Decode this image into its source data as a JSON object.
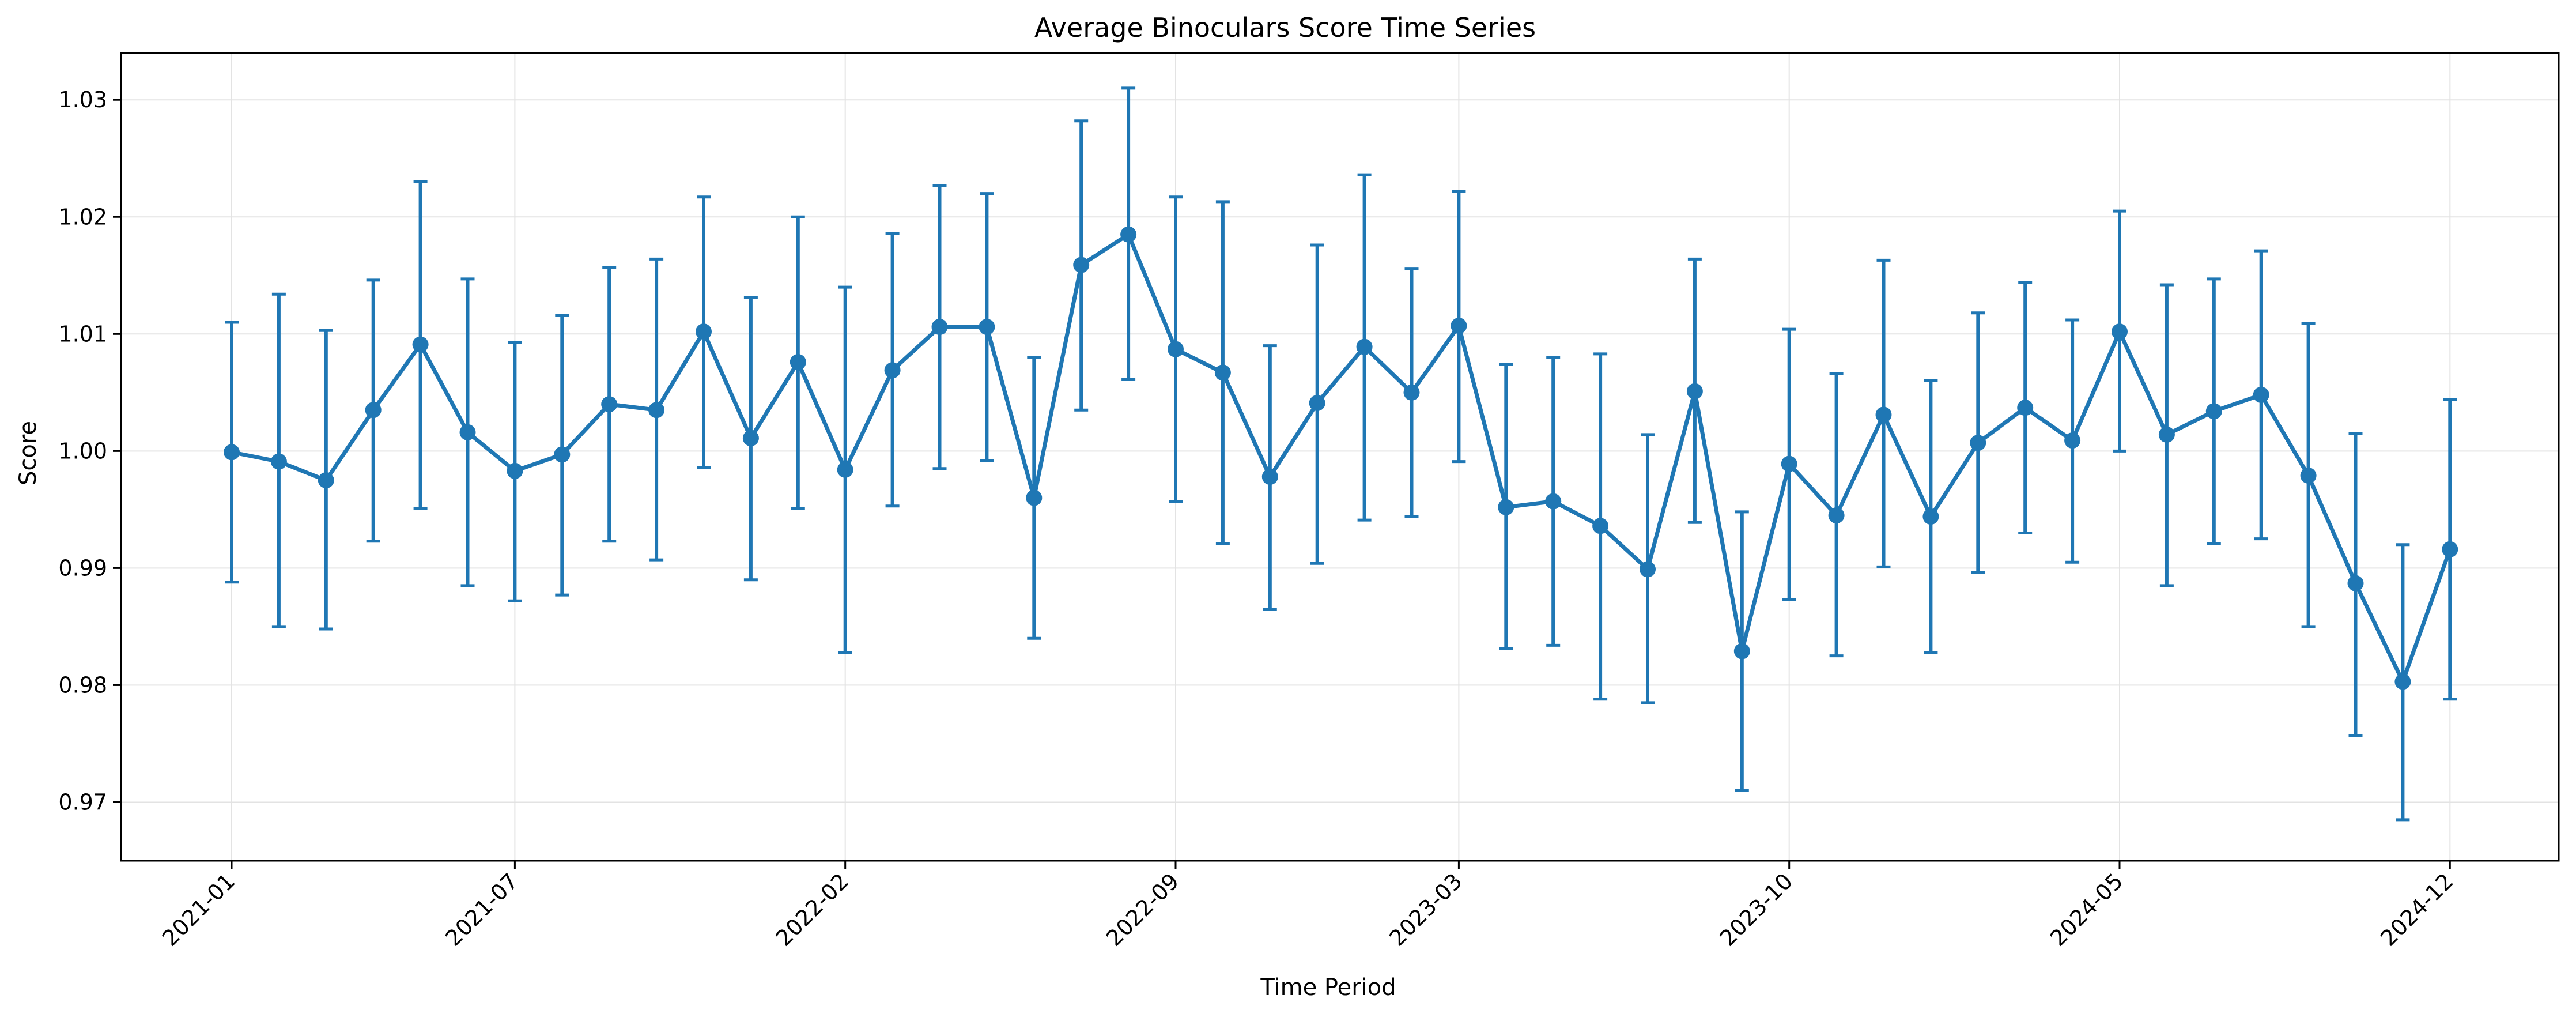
{
  "chart_data": {
    "type": "line",
    "title": "Average Binoculars Score Time Series",
    "xlabel": "Time Period",
    "ylabel": "Score",
    "ylim": [
      0.965,
      1.034
    ],
    "yticks": [
      0.97,
      0.98,
      0.99,
      1.0,
      1.01,
      1.02,
      1.03
    ],
    "ytick_labels": [
      "0.97",
      "0.98",
      "0.99",
      "1.00",
      "1.01",
      "1.02",
      "1.03"
    ],
    "x_tick_labels": [
      "2021-01",
      "2021-07",
      "2022-02",
      "2022-09",
      "2023-03",
      "2023-10",
      "2024-05",
      "2024-12"
    ],
    "grid": true,
    "color": "#1f77b4",
    "series": [
      {
        "x": [
          "2021-01",
          "2021-02",
          "2021-03",
          "2021-04",
          "2021-05",
          "2021-06",
          "2021-07",
          "2021-08",
          "2021-09",
          "2021-10",
          "2021-11",
          "2021-12",
          "2022-01",
          "2022-02",
          "2022-03",
          "2022-04",
          "2022-05",
          "2022-06",
          "2022-07",
          "2022-08",
          "2022-09",
          "2022-10",
          "2022-11",
          "2022-12",
          "2023-01",
          "2023-02",
          "2023-03",
          "2023-04",
          "2023-05",
          "2023-06",
          "2023-07",
          "2023-08",
          "2023-09",
          "2023-10",
          "2023-11",
          "2023-12",
          "2024-01",
          "2024-02",
          "2024-03",
          "2024-04",
          "2024-05",
          "2024-06",
          "2024-07",
          "2024-08",
          "2024-09",
          "2024-10",
          "2024-11",
          "2024-12"
        ],
        "values": [
          0.9999,
          0.9991,
          0.9975,
          1.0035,
          1.0091,
          1.0016,
          0.9983,
          0.9997,
          1.004,
          1.0035,
          1.0102,
          1.0011,
          1.0076,
          0.9984,
          1.0069,
          1.0106,
          1.0106,
          0.996,
          1.0159,
          1.0185,
          1.0087,
          1.0067,
          0.9978,
          1.0041,
          1.0089,
          1.005,
          1.0107,
          0.9952,
          0.9957,
          0.9936,
          0.9899,
          1.0051,
          0.9829,
          0.9989,
          0.9945,
          1.0031,
          0.9944,
          1.0007,
          1.0037,
          1.0009,
          1.0102,
          1.0014,
          1.0034,
          1.0048,
          0.9979,
          0.9887,
          0.9803,
          0.9916
        ],
        "err_low": [
          0.9888,
          0.985,
          0.9848,
          0.9923,
          0.9951,
          0.9885,
          0.9872,
          0.9877,
          0.9923,
          0.9907,
          0.9986,
          0.989,
          0.9951,
          0.9828,
          0.9953,
          0.9985,
          0.9992,
          0.984,
          1.0035,
          1.0061,
          0.9957,
          0.9921,
          0.9865,
          0.9904,
          0.9941,
          0.9944,
          0.9991,
          0.9831,
          0.9834,
          0.9788,
          0.9785,
          0.9939,
          0.971,
          0.9873,
          0.9825,
          0.9901,
          0.9828,
          0.9896,
          0.993,
          0.9905,
          1.0,
          0.9885,
          0.9921,
          0.9925,
          0.985,
          0.9757,
          0.9685,
          0.9788
        ],
        "err_high": [
          1.011,
          1.0134,
          1.0103,
          1.0146,
          1.023,
          1.0147,
          1.0093,
          1.0116,
          1.0157,
          1.0164,
          1.0217,
          1.0131,
          1.02,
          1.014,
          1.0186,
          1.0227,
          1.022,
          1.008,
          1.0282,
          1.031,
          1.0217,
          1.0213,
          1.009,
          1.0176,
          1.0236,
          1.0156,
          1.0222,
          1.0074,
          1.008,
          1.0083,
          1.0014,
          1.0164,
          0.9948,
          1.0104,
          1.0066,
          1.0163,
          1.006,
          1.0118,
          1.0144,
          1.0112,
          1.0205,
          1.0142,
          1.0147,
          1.0171,
          1.0109,
          1.0015,
          0.992,
          1.0044
        ]
      }
    ]
  }
}
